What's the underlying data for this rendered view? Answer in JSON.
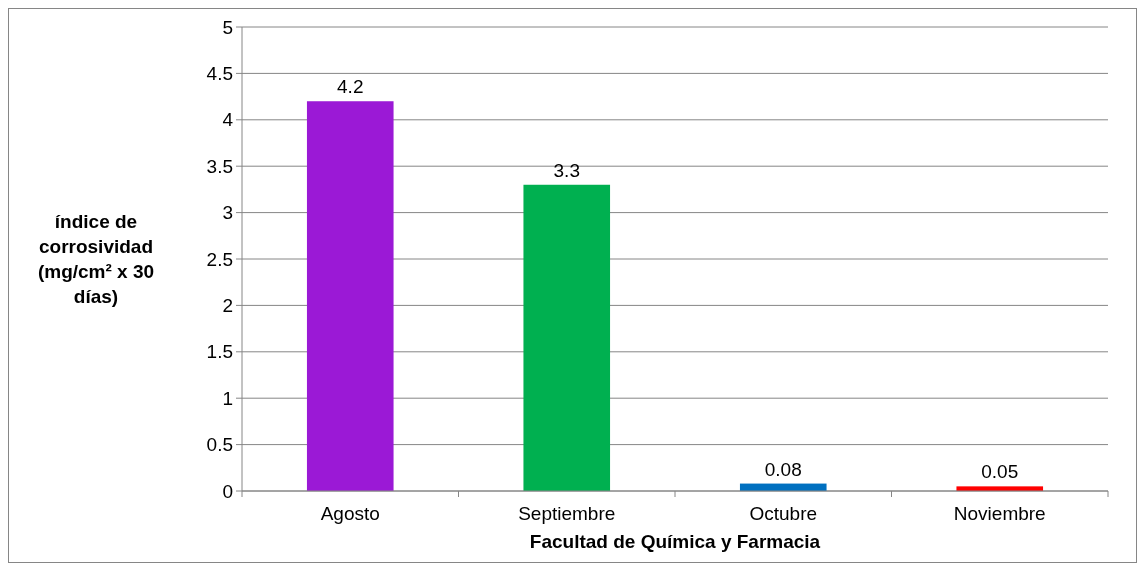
{
  "chart_data": {
    "type": "bar",
    "xlabel": "Facultad de Química y Farmacia",
    "ylabel": "índice de corrosividad (mg/cm² x 30 días)",
    "categories": [
      "Agosto",
      "Septiembre",
      "Octubre",
      "Noviembre"
    ],
    "values": [
      4.2,
      3.3,
      0.08,
      0.05
    ],
    "colors": [
      "#9b19d6",
      "#00b050",
      "#0070c0",
      "#ff0000"
    ],
    "ylim": [
      0,
      5
    ],
    "yticks": [
      0,
      0.5,
      1,
      1.5,
      2,
      2.5,
      3,
      3.5,
      4,
      4.5,
      5
    ],
    "grid": "y",
    "data_labels": true
  }
}
